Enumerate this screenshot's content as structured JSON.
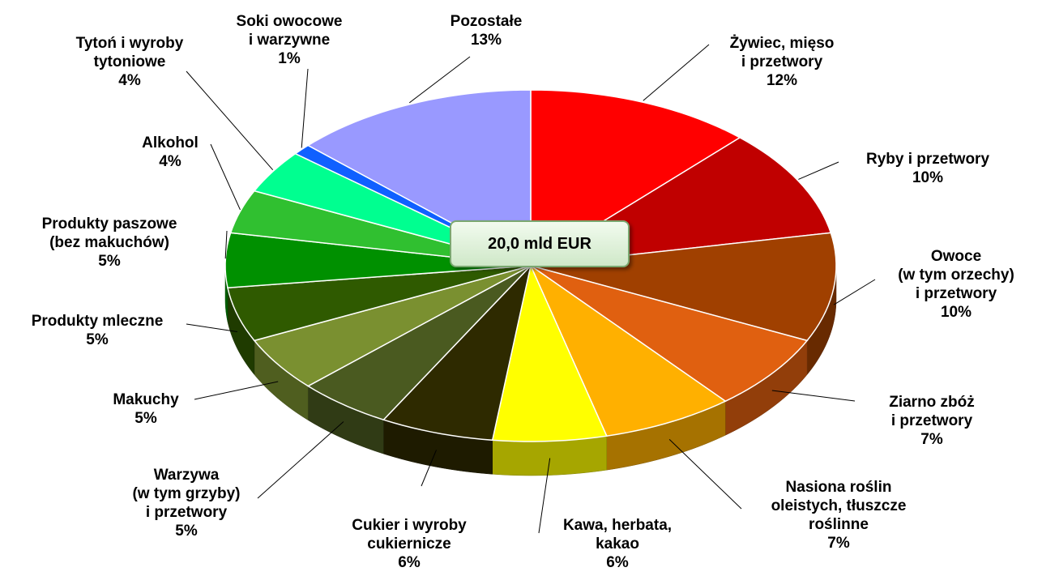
{
  "chart_data": {
    "type": "pie",
    "categories": [
      "Żywiec, mięso\ni przetwory",
      "Ryby i przetwory",
      "Owoce\n(w tym orzechy)\ni przetwory",
      "Ziarno zbóż\ni przetwory",
      "Nasiona roślin\noleistych, tłuszcze\nroślinne",
      "Kawa, herbata,\nkakao",
      "Cukier i wyroby\ncukiernicze",
      "Warzywa\n(w tym grzyby)\ni przetwory",
      "Makuchy",
      "Produkty mleczne",
      "Produkty paszowe\n(bez makuchów)",
      "Alkohol",
      "Tytoń i wyroby\ntytoniowe",
      "Soki owocowe\ni warzywne",
      "Pozostałe"
    ],
    "values": [
      12,
      10,
      10,
      7,
      7,
      6,
      6,
      5,
      5,
      5,
      5,
      4,
      4,
      1,
      13
    ],
    "value_labels": [
      "12%",
      "10%",
      "10%",
      "7%",
      "7%",
      "6%",
      "6%",
      "5%",
      "5%",
      "5%",
      "5%",
      "4%",
      "4%",
      "1%",
      "13%"
    ],
    "colors": [
      "#ff0000",
      "#c00000",
      "#a04000",
      "#e06010",
      "#ffb000",
      "#ffff00",
      "#2e2a00",
      "#4a5a20",
      "#7a9030",
      "#2f5a00",
      "#009000",
      "#30c030",
      "#00ff90",
      "#1060ff",
      "#9999ff"
    ],
    "annotation": "20,0 mld EUR"
  }
}
